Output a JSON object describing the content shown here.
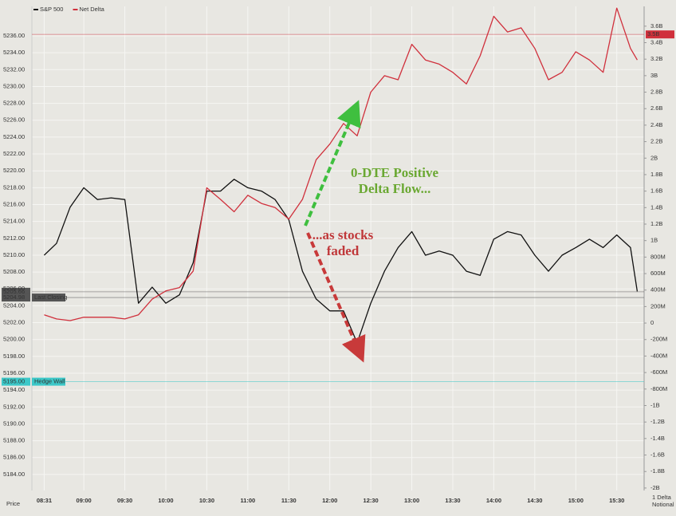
{
  "chart_data": {
    "type": "line",
    "legend": [
      "S&P 500",
      "Net Delta"
    ],
    "x": [
      "08:31",
      "08:40",
      "08:50",
      "09:00",
      "09:10",
      "09:20",
      "09:30",
      "09:40",
      "09:50",
      "10:00",
      "10:10",
      "10:20",
      "10:30",
      "10:40",
      "10:50",
      "11:00",
      "11:10",
      "11:20",
      "11:30",
      "11:40",
      "11:50",
      "12:00",
      "12:10",
      "12:20",
      "12:30",
      "12:40",
      "12:50",
      "13:00",
      "13:10",
      "13:20",
      "13:30",
      "13:40",
      "13:50",
      "14:00",
      "14:10",
      "14:20",
      "14:30",
      "14:40",
      "14:50",
      "15:00",
      "15:10",
      "15:20",
      "15:30",
      "15:40",
      "15:45"
    ],
    "series": [
      {
        "name": "S&P 500",
        "color": "#111111",
        "axis": "y",
        "values": [
          5210,
          5211.4,
          5215.7,
          5218,
          5216.6,
          5216.8,
          5216.6,
          5204.3,
          5206.2,
          5204.3,
          5205.3,
          5209.1,
          5217.6,
          5217.6,
          5219,
          5218,
          5217.6,
          5216.6,
          5214.2,
          5208.1,
          5204.8,
          5203.4,
          5203.4,
          5199.6,
          5204.3,
          5208.1,
          5210.9,
          5212.8,
          5210,
          5210.5,
          5210,
          5208.1,
          5207.6,
          5211.9,
          5212.8,
          5212.4,
          5210,
          5208.1,
          5210,
          5210.9,
          5211.9,
          5210.9,
          5212.4,
          5210.9,
          5205.7
        ]
      },
      {
        "name": "Net Delta",
        "color": "#d0303c",
        "axis": "y2",
        "values": [
          100,
          50,
          30,
          70,
          70,
          70,
          50,
          100,
          290,
          390,
          430,
          630,
          1640,
          1500,
          1350,
          1550,
          1450,
          1400,
          1260,
          1500,
          1980,
          2170,
          2420,
          2270,
          2800,
          3000,
          2950,
          3380,
          3190,
          3140,
          3040,
          2900,
          3240,
          3720,
          3530,
          3580,
          3330,
          2950,
          3040,
          3290,
          3190,
          3040,
          3820,
          3330,
          3190
        ]
      }
    ],
    "xlim": [
      "08:22",
      "15:50"
    ],
    "xticks": [
      "08:31",
      "09:00",
      "09:30",
      "10:00",
      "10:30",
      "11:00",
      "11:30",
      "12:00",
      "12:30",
      "13:00",
      "13:30",
      "14:00",
      "14:30",
      "15:00",
      "15:30"
    ],
    "ylim": [
      5182.1,
      5239.5
    ],
    "yticks": [
      {
        "value": 5184,
        "label": "5184.00"
      },
      {
        "value": 5186,
        "label": "5186.00"
      },
      {
        "value": 5188,
        "label": "5188.00"
      },
      {
        "value": 5190,
        "label": "5190.00"
      },
      {
        "value": 5192,
        "label": "5192.00"
      },
      {
        "value": 5194,
        "label": "5194.00"
      },
      {
        "value": 5196,
        "label": "5196.00"
      },
      {
        "value": 5198,
        "label": "5198.00"
      },
      {
        "value": 5200,
        "label": "5200.00"
      },
      {
        "value": 5202,
        "label": "5202.00"
      },
      {
        "value": 5204,
        "label": "5204.00"
      },
      {
        "value": 5206,
        "label": "5206.00"
      },
      {
        "value": 5208,
        "label": "5208.00"
      },
      {
        "value": 5210,
        "label": "5210.00"
      },
      {
        "value": 5212,
        "label": "5212.00"
      },
      {
        "value": 5214,
        "label": "5214.00"
      },
      {
        "value": 5216,
        "label": "5216.00"
      },
      {
        "value": 5218,
        "label": "5218.00"
      },
      {
        "value": 5220,
        "label": "5220.00"
      },
      {
        "value": 5222,
        "label": "5222.00"
      },
      {
        "value": 5224,
        "label": "5224.00"
      },
      {
        "value": 5226,
        "label": "5226.00"
      },
      {
        "value": 5228,
        "label": "5228.00"
      },
      {
        "value": 5230,
        "label": "5230.00"
      },
      {
        "value": 5232,
        "label": "5232.00"
      },
      {
        "value": 5234,
        "label": "5234.00"
      },
      {
        "value": 5236,
        "label": "5236.00"
      }
    ],
    "y2lim": [
      -2030,
      3840
    ],
    "y2ticks": [
      {
        "value": -2000,
        "label": "-2B"
      },
      {
        "value": -1800,
        "label": "-1.8B"
      },
      {
        "value": -1600,
        "label": "-1.6B"
      },
      {
        "value": -1400,
        "label": "-1.4B"
      },
      {
        "value": -1200,
        "label": "-1.2B"
      },
      {
        "value": -1000,
        "label": "-1B"
      },
      {
        "value": -800,
        "label": "-800M"
      },
      {
        "value": -600,
        "label": "-600M"
      },
      {
        "value": -400,
        "label": "-400M"
      },
      {
        "value": -200,
        "label": "-200M"
      },
      0,
      {
        "value": 200,
        "label": "200M"
      },
      {
        "value": 400,
        "label": "400M"
      },
      {
        "value": 600,
        "label": "600M"
      },
      {
        "value": 800,
        "label": "800M"
      },
      {
        "value": 1000,
        "label": "1B"
      },
      {
        "value": 1200,
        "label": "1.2B"
      },
      {
        "value": 1400,
        "label": "1.4B"
      },
      {
        "value": 1600,
        "label": "1.6B"
      },
      {
        "value": 1800,
        "label": "1.8B"
      },
      {
        "value": 2000,
        "label": "2B"
      },
      {
        "value": 2200,
        "label": "2.2B"
      },
      {
        "value": 2400,
        "label": "2.4B"
      },
      {
        "value": 2600,
        "label": "2.6B"
      },
      {
        "value": 2800,
        "label": "2.8B"
      },
      {
        "value": 3000,
        "label": "3B"
      },
      {
        "value": 3200,
        "label": "3.2B"
      },
      {
        "value": 3400,
        "label": "3.4B"
      },
      {
        "value": 3600,
        "label": "3.6B"
      }
    ],
    "grid": true,
    "levels": [
      {
        "axis": "y",
        "value": 5205.66,
        "label": "5205.66",
        "color": "#555555"
      },
      {
        "axis": "y",
        "value": 5204.98,
        "label": "5204.98",
        "name": "Last Closing",
        "color": "#555555"
      },
      {
        "axis": "y",
        "value": 5195,
        "label": "5195.00",
        "name": "Hedge Wall",
        "color": "#3cc8c8"
      },
      {
        "axis": "y2",
        "value": 3500,
        "label": "3.5B",
        "color": "#d0303c"
      }
    ],
    "annotations": [
      {
        "lines": [
          "0-DTE Positive",
          "Delta Flow..."
        ],
        "color": "#6aa832"
      },
      {
        "lines": [
          "...as stocks",
          "faded"
        ],
        "color": "#c0383a"
      }
    ],
    "left_axis_label": "Price",
    "right_axis_label": [
      "1 Delta",
      "Notional"
    ]
  }
}
